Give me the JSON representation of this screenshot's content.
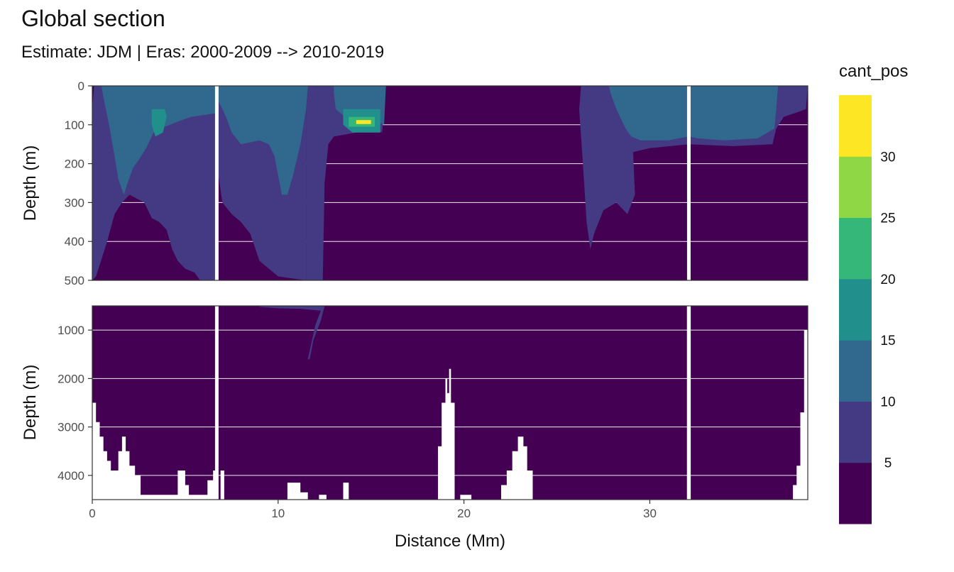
{
  "chart_data": {
    "type": "heatmap",
    "title": "Global section",
    "subtitle": "Estimate: JDM  | Eras: 2000-2009 --> 2010-2019",
    "xlabel": "Distance (Mm)",
    "ylabel": "Depth (m)",
    "xlim": [
      0,
      38.5
    ],
    "x_ticks": [
      0,
      10,
      20,
      30
    ],
    "panels": [
      {
        "name": "upper",
        "ylim": [
          0,
          500
        ],
        "y_ticks": [
          0,
          100,
          200,
          300,
          400,
          500
        ]
      },
      {
        "name": "lower",
        "ylim": [
          500,
          4500
        ],
        "y_ticks": [
          1000,
          2000,
          3000,
          4000
        ]
      }
    ],
    "legend": {
      "title": "cant_pos",
      "position": "right",
      "breaks": [
        5,
        10,
        15,
        20,
        25,
        30
      ],
      "bins": [
        {
          "range": "<5",
          "color": "#440154"
        },
        {
          "range": "5-10",
          "color": "#443a83"
        },
        {
          "range": "10-15",
          "color": "#31688e"
        },
        {
          "range": "15-20",
          "color": "#21908d"
        },
        {
          "range": "20-25",
          "color": "#35b779"
        },
        {
          "range": "25-30",
          "color": "#8fd744"
        },
        {
          "range": ">30",
          "color": "#fde725"
        }
      ]
    },
    "section_breaks_x": [
      6.7,
      32.1
    ],
    "upper_regions": [
      {
        "level": 1,
        "outline": [
          [
            0.1,
            0
          ],
          [
            6.7,
            0
          ],
          [
            6.7,
            500
          ],
          [
            5.8,
            500
          ],
          [
            5.5,
            480
          ],
          [
            5,
            470
          ],
          [
            4.6,
            450
          ],
          [
            4.3,
            420
          ],
          [
            4,
            370
          ],
          [
            3.6,
            350
          ],
          [
            3.2,
            340
          ],
          [
            2.8,
            300
          ],
          [
            2.4,
            290
          ],
          [
            2,
            280
          ],
          [
            1.6,
            300
          ],
          [
            1.2,
            330
          ],
          [
            0.8,
            400
          ],
          [
            0.4,
            460
          ],
          [
            0.2,
            490
          ],
          [
            0,
            500
          ],
          [
            0,
            60
          ]
        ]
      },
      {
        "level": 1,
        "outline": [
          [
            6.7,
            0
          ],
          [
            11.5,
            0
          ],
          [
            11.5,
            500
          ],
          [
            10,
            490
          ],
          [
            9,
            450
          ],
          [
            8.5,
            380
          ],
          [
            8,
            350
          ],
          [
            7.5,
            330
          ],
          [
            7,
            300
          ],
          [
            6.7,
            200
          ]
        ]
      },
      {
        "level": 1,
        "outline": [
          [
            11.5,
            0
          ],
          [
            15.8,
            0
          ],
          [
            15.6,
            120
          ],
          [
            15.2,
            110
          ],
          [
            14.8,
            115
          ],
          [
            14.2,
            120
          ],
          [
            13.6,
            125
          ],
          [
            13,
            130
          ],
          [
            12.7,
            150
          ],
          [
            12.5,
            250
          ],
          [
            12.4,
            500
          ],
          [
            11.5,
            500
          ]
        ]
      },
      {
        "level": 1,
        "outline": [
          [
            26.3,
            0
          ],
          [
            32.1,
            0
          ],
          [
            32.1,
            150
          ],
          [
            30,
            160
          ],
          [
            29.1,
            170
          ],
          [
            29.2,
            280
          ],
          [
            28.8,
            330
          ],
          [
            28.2,
            300
          ],
          [
            27.5,
            320
          ],
          [
            27,
            380
          ],
          [
            26.8,
            420
          ],
          [
            26.6,
            350
          ],
          [
            26.4,
            200
          ],
          [
            26.2,
            60
          ]
        ]
      },
      {
        "level": 1,
        "outline": [
          [
            32.1,
            0
          ],
          [
            38.5,
            0
          ],
          [
            38.4,
            60
          ],
          [
            37.8,
            70
          ],
          [
            37.2,
            80
          ],
          [
            36.8,
            110
          ],
          [
            36.6,
            150
          ],
          [
            34.5,
            155
          ],
          [
            32.1,
            150
          ]
        ]
      },
      {
        "level": 2,
        "outline": [
          [
            0.5,
            0
          ],
          [
            6.7,
            0
          ],
          [
            6.7,
            70
          ],
          [
            5.3,
            80
          ],
          [
            4.7,
            90
          ],
          [
            4.2,
            100
          ],
          [
            3.6,
            110
          ],
          [
            3.3,
            120
          ],
          [
            2.9,
            160
          ],
          [
            2.5,
            190
          ],
          [
            2.2,
            210
          ],
          [
            1.9,
            250
          ],
          [
            1.7,
            280
          ],
          [
            1.4,
            240
          ],
          [
            1.2,
            180
          ],
          [
            0.9,
            100
          ],
          [
            0.6,
            30
          ]
        ]
      },
      {
        "level": 2,
        "outline": [
          [
            6.7,
            0
          ],
          [
            11.6,
            0
          ],
          [
            11.5,
            60
          ],
          [
            11.2,
            150
          ],
          [
            10.8,
            230
          ],
          [
            10.5,
            280
          ],
          [
            10.2,
            280
          ],
          [
            10,
            230
          ],
          [
            9.8,
            180
          ],
          [
            9.5,
            150
          ],
          [
            9,
            140
          ],
          [
            8.5,
            145
          ],
          [
            8,
            150
          ],
          [
            7.5,
            120
          ],
          [
            7.2,
            80
          ],
          [
            6.9,
            50
          ],
          [
            6.7,
            30
          ]
        ]
      },
      {
        "level": 2,
        "outline": [
          [
            13,
            0
          ],
          [
            15.8,
            0
          ],
          [
            15.7,
            100
          ],
          [
            15.3,
            90
          ],
          [
            14.8,
            80
          ],
          [
            14.2,
            70
          ],
          [
            13.6,
            80
          ],
          [
            13.1,
            60
          ],
          [
            13,
            20
          ]
        ]
      },
      {
        "level": 2,
        "outline": [
          [
            27.8,
            0
          ],
          [
            32.1,
            0
          ],
          [
            32.1,
            130
          ],
          [
            31,
            140
          ],
          [
            29.5,
            140
          ],
          [
            29,
            130
          ],
          [
            28.7,
            110
          ],
          [
            28.2,
            60
          ],
          [
            27.9,
            20
          ]
        ]
      },
      {
        "level": 2,
        "outline": [
          [
            32.1,
            0
          ],
          [
            36.9,
            0
          ],
          [
            36.8,
            60
          ],
          [
            36.7,
            110
          ],
          [
            35.8,
            135
          ],
          [
            34,
            140
          ],
          [
            32.6,
            135
          ],
          [
            32.1,
            130
          ]
        ]
      },
      {
        "level": 3,
        "outline": [
          [
            3.2,
            60
          ],
          [
            3.9,
            60
          ],
          [
            4,
            80
          ],
          [
            3.8,
            120
          ],
          [
            3.4,
            130
          ],
          [
            3.2,
            100
          ]
        ]
      },
      {
        "level": 3,
        "outline": [
          [
            13.5,
            60
          ],
          [
            15.5,
            60
          ],
          [
            15.5,
            120
          ],
          [
            14,
            120
          ],
          [
            13.5,
            100
          ]
        ]
      },
      {
        "level": 4,
        "outline": [
          [
            13.8,
            80
          ],
          [
            15.2,
            80
          ],
          [
            15.2,
            105
          ],
          [
            13.8,
            105
          ]
        ]
      },
      {
        "level": 6,
        "outline": [
          [
            14.2,
            88
          ],
          [
            15,
            88
          ],
          [
            15,
            98
          ],
          [
            14.2,
            98
          ]
        ]
      }
    ],
    "lower_regions": [
      {
        "level": 1,
        "outline": [
          [
            9,
            500
          ],
          [
            11.2,
            500
          ],
          [
            11.8,
            500
          ],
          [
            12.5,
            500
          ],
          [
            12.3,
            800
          ],
          [
            11.9,
            1200
          ],
          [
            11.7,
            1600
          ],
          [
            11.6,
            1600
          ],
          [
            12,
            900
          ],
          [
            12.3,
            600
          ],
          [
            11.2,
            560
          ],
          [
            10,
            550
          ],
          [
            9,
            520
          ]
        ]
      }
    ],
    "seafloor_blank": [
      [
        [
          0,
          2500
        ],
        [
          0.2,
          2500
        ],
        [
          0.2,
          2900
        ],
        [
          0.4,
          2900
        ],
        [
          0.4,
          3200
        ],
        [
          0.6,
          3200
        ],
        [
          0.6,
          3500
        ],
        [
          0.8,
          3500
        ],
        [
          0.8,
          3700
        ],
        [
          1,
          3700
        ],
        [
          1,
          3900
        ],
        [
          1.4,
          3900
        ],
        [
          1.4,
          3500
        ],
        [
          1.6,
          3500
        ],
        [
          1.6,
          3200
        ],
        [
          1.8,
          3200
        ],
        [
          1.8,
          3500
        ],
        [
          2,
          3500
        ],
        [
          2,
          3800
        ],
        [
          2.3,
          3800
        ],
        [
          2.3,
          4000
        ],
        [
          2.6,
          4000
        ],
        [
          2.6,
          4400
        ],
        [
          4.6,
          4400
        ],
        [
          4.6,
          3900
        ],
        [
          5,
          3900
        ],
        [
          5,
          4200
        ],
        [
          5.2,
          4200
        ],
        [
          5.2,
          4400
        ],
        [
          6.2,
          4400
        ],
        [
          6.2,
          4100
        ],
        [
          6.5,
          4100
        ],
        [
          6.5,
          3900
        ],
        [
          6.7,
          3900
        ],
        [
          6.7,
          4500
        ],
        [
          0,
          4500
        ]
      ],
      [
        [
          6.9,
          3900
        ],
        [
          7.1,
          3900
        ],
        [
          7.1,
          4500
        ],
        [
          6.9,
          4500
        ]
      ],
      [
        [
          10.5,
          4500
        ],
        [
          10.5,
          4150
        ],
        [
          11.2,
          4150
        ],
        [
          11.2,
          4350
        ],
        [
          11.6,
          4350
        ],
        [
          11.6,
          4500
        ]
      ],
      [
        [
          12.2,
          4500
        ],
        [
          12.2,
          4400
        ],
        [
          12.6,
          4400
        ],
        [
          12.6,
          4500
        ]
      ],
      [
        [
          13.5,
          4500
        ],
        [
          13.5,
          4150
        ],
        [
          13.8,
          4150
        ],
        [
          13.8,
          4500
        ]
      ],
      [
        [
          18.6,
          4500
        ],
        [
          18.6,
          3400
        ],
        [
          18.8,
          3400
        ],
        [
          18.8,
          2500
        ],
        [
          19,
          2500
        ],
        [
          19,
          2000
        ],
        [
          19.1,
          2000
        ],
        [
          19.1,
          2300
        ],
        [
          19.2,
          2300
        ],
        [
          19.2,
          1800
        ],
        [
          19.3,
          1800
        ],
        [
          19.3,
          2500
        ],
        [
          19.5,
          2500
        ],
        [
          19.5,
          4500
        ]
      ],
      [
        [
          19.8,
          4500
        ],
        [
          19.8,
          4400
        ],
        [
          20.4,
          4400
        ],
        [
          20.4,
          4500
        ]
      ],
      [
        [
          22,
          4500
        ],
        [
          22,
          4200
        ],
        [
          22.3,
          4200
        ],
        [
          22.3,
          3900
        ],
        [
          22.6,
          3900
        ],
        [
          22.6,
          3500
        ],
        [
          22.9,
          3500
        ],
        [
          22.9,
          3200
        ],
        [
          23.2,
          3200
        ],
        [
          23.2,
          3400
        ],
        [
          23.4,
          3400
        ],
        [
          23.4,
          3900
        ],
        [
          23.7,
          3900
        ],
        [
          23.7,
          4500
        ]
      ],
      [
        [
          32,
          4500
        ],
        [
          32,
          500
        ],
        [
          32.2,
          500
        ],
        [
          32.2,
          4500
        ]
      ],
      [
        [
          37.7,
          4500
        ],
        [
          37.7,
          4200
        ],
        [
          37.9,
          4200
        ],
        [
          37.9,
          3800
        ],
        [
          38.1,
          3800
        ],
        [
          38.1,
          2700
        ],
        [
          38.3,
          2700
        ],
        [
          38.3,
          1000
        ],
        [
          38.5,
          1000
        ],
        [
          38.5,
          4500
        ]
      ]
    ]
  }
}
